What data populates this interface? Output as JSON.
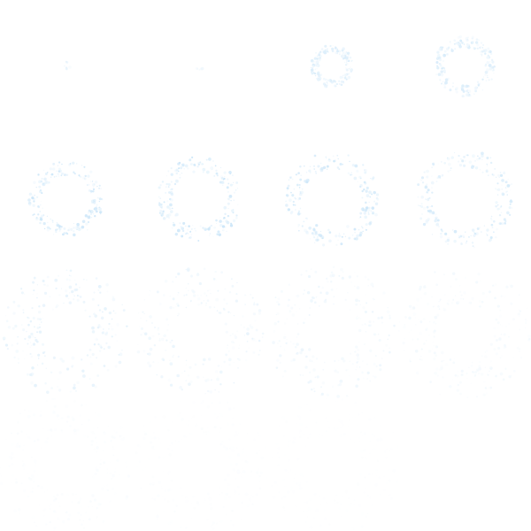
{
  "sprite_sheet": {
    "background_color": "#ffffff",
    "particle_color": "#bfe0f7",
    "particle_highlight_color": "#e3f2fc",
    "rows": 4,
    "columns": 4,
    "frame_count": 16,
    "frames": [
      {
        "id": 1,
        "stage": "spark",
        "opacity": 0.35,
        "ring_scale": 0.06
      },
      {
        "id": 2,
        "stage": "spark",
        "opacity": 0.35,
        "ring_scale": 0.08
      },
      {
        "id": 3,
        "stage": "forming",
        "opacity": 0.55,
        "ring_scale": 0.35
      },
      {
        "id": 4,
        "stage": "forming",
        "opacity": 0.6,
        "ring_scale": 0.5
      },
      {
        "id": 5,
        "stage": "ring",
        "opacity": 0.75,
        "ring_scale": 0.62
      },
      {
        "id": 6,
        "stage": "ring",
        "opacity": 0.75,
        "ring_scale": 0.7
      },
      {
        "id": 7,
        "stage": "ring",
        "opacity": 0.72,
        "ring_scale": 0.78
      },
      {
        "id": 8,
        "stage": "ring",
        "opacity": 0.62,
        "ring_scale": 0.82
      },
      {
        "id": 9,
        "stage": "dissipating",
        "opacity": 0.4,
        "ring_scale": 0.9
      },
      {
        "id": 10,
        "stage": "dissipating",
        "opacity": 0.32,
        "ring_scale": 0.92
      },
      {
        "id": 11,
        "stage": "dissipating",
        "opacity": 0.26,
        "ring_scale": 0.95
      },
      {
        "id": 12,
        "stage": "dissipating",
        "opacity": 0.18,
        "ring_scale": 0.97
      },
      {
        "id": 13,
        "stage": "fading",
        "opacity": 0.08,
        "ring_scale": 1.0
      },
      {
        "id": 14,
        "stage": "fading",
        "opacity": 0.05,
        "ring_scale": 1.0
      },
      {
        "id": 15,
        "stage": "fading",
        "opacity": 0.03,
        "ring_scale": 1.0
      },
      {
        "id": 16,
        "stage": "fading",
        "opacity": 0.0,
        "ring_scale": 1.0
      }
    ]
  }
}
